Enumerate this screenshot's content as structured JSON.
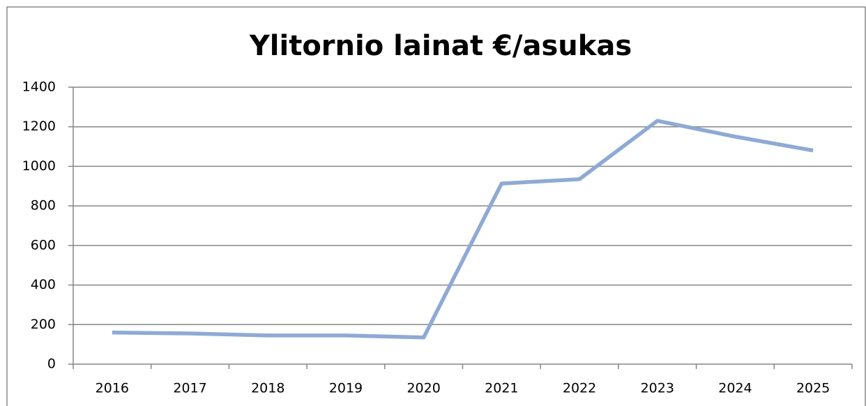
{
  "chart_data": {
    "type": "line",
    "title": "Ylitornio lainat €/asukas",
    "categories": [
      "2016",
      "2017",
      "2018",
      "2019",
      "2020",
      "2021",
      "2022",
      "2023",
      "2024",
      "2025"
    ],
    "series": [
      {
        "name": "Ylitornio lainat €/asukas",
        "color": "#8eaad4",
        "values": [
          160,
          155,
          145,
          145,
          135,
          913,
          935,
          1230,
          1150,
          1080
        ]
      }
    ],
    "ylim": [
      0,
      1400
    ],
    "yticks": [
      0,
      200,
      400,
      600,
      800,
      1000,
      1200,
      1400
    ],
    "grid": true
  }
}
